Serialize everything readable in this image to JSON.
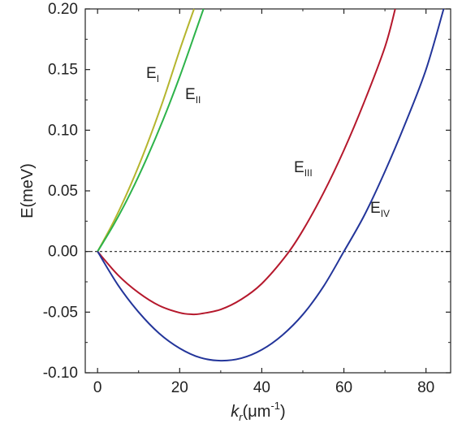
{
  "chart_data": {
    "type": "line",
    "xlabel": {
      "main": "k",
      "sub": "r",
      "unit": "(μm",
      "exp": "-1",
      "close": ")"
    },
    "ylabel": "E(meV)",
    "xlim": [
      -3,
      86
    ],
    "ylim": [
      -0.1,
      0.2
    ],
    "x_ticks": [
      "0",
      "20",
      "40",
      "60",
      "80"
    ],
    "y_ticks": [
      "-0.10",
      "-0.05",
      "0.00",
      "0.05",
      "0.10",
      "0.15",
      "0.20"
    ],
    "reference_line": {
      "y": 0.0,
      "style": "dotted"
    },
    "grid": false,
    "series": [
      {
        "name": "E",
        "sub": "I",
        "color": "#b5b52e",
        "x": [
          0,
          4,
          8,
          12,
          16,
          20,
          23.5
        ],
        "y": [
          0,
          0.0252,
          0.0544,
          0.0876,
          0.1248,
          0.166,
          0.2
        ]
      },
      {
        "name": "E",
        "sub": "II",
        "color": "#2db34a",
        "x": [
          0,
          4,
          8,
          12,
          16,
          20,
          24,
          25.8
        ],
        "y": [
          0,
          0.0225,
          0.0481,
          0.077,
          0.1089,
          0.1441,
          0.1825,
          0.2
        ]
      },
      {
        "name": "E",
        "sub": "III",
        "color": "#b5182c",
        "x": [
          0,
          5,
          10,
          15,
          20,
          23,
          25,
          30,
          35,
          40,
          46,
          50,
          55,
          60,
          65,
          70,
          72.5
        ],
        "y": [
          0,
          -0.0195,
          -0.034,
          -0.0446,
          -0.0505,
          -0.0518,
          -0.0514,
          -0.0478,
          -0.0395,
          -0.0265,
          -0.003,
          0.0174,
          0.0481,
          0.0835,
          0.1237,
          0.1686,
          0.2
        ]
      },
      {
        "name": "E",
        "sub": "IV",
        "color": "#23359a",
        "x": [
          0,
          5,
          10,
          15,
          20,
          25,
          30,
          35,
          40,
          45,
          50,
          55,
          60,
          65,
          70,
          75,
          80,
          84.3
        ],
        "y": [
          0,
          -0.0278,
          -0.05,
          -0.0675,
          -0.0798,
          -0.0875,
          -0.09,
          -0.088,
          -0.081,
          -0.069,
          -0.052,
          -0.029,
          0.0,
          0.03,
          0.066,
          0.106,
          0.15,
          0.2
        ]
      }
    ]
  }
}
